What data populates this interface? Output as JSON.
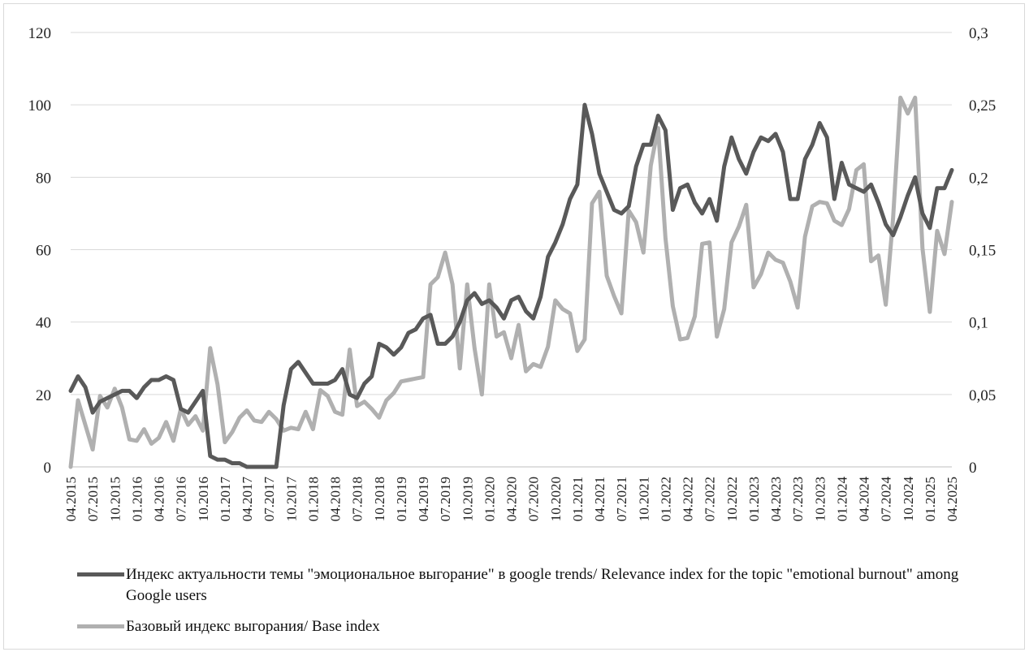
{
  "chart_data": {
    "type": "line",
    "title": "",
    "xlabel": "",
    "ylabel_left": "",
    "ylabel_right": "",
    "y_left": {
      "min": 0,
      "max": 120,
      "ticks": [
        "0",
        "20",
        "40",
        "60",
        "80",
        "100",
        "120"
      ]
    },
    "y_right": {
      "min": 0,
      "max": 0.3,
      "ticks": [
        "0",
        "0,05",
        "0,1",
        "0,15",
        "0,2",
        "0,25",
        "0,3"
      ]
    },
    "x_labels": [
      "04.2015",
      "07.2015",
      "10.2015",
      "01.2016",
      "04.2016",
      "07.2016",
      "10.2016",
      "01.2017",
      "04.2017",
      "07.2017",
      "10.2017",
      "01.2018",
      "04.2018",
      "07.2018",
      "10.2018",
      "01.2019",
      "04.2019",
      "07.2019",
      "10.2019",
      "01.2020",
      "04.2020",
      "07.2020",
      "10.2020",
      "01.2021",
      "04.2021",
      "07.2021",
      "10.2021",
      "01.2022",
      "04.2022",
      "07.2022",
      "10.2022",
      "01.2023",
      "04.2023",
      "07.2023",
      "10.2023",
      "01.2024",
      "04.2024",
      "07.2024",
      "10.2024",
      "01.2025",
      "04.2025"
    ],
    "grid": true,
    "legend_position": "bottom",
    "series": [
      {
        "name": "Индекс актуальности темы \"эмоциональное выгорание\" в google trends/ Relevance index for the topic \"emotional burnout\" among Google users",
        "axis": "left",
        "color": "#595959",
        "values": [
          21,
          25,
          22,
          15,
          18,
          19,
          20,
          21,
          21,
          19,
          22,
          24,
          24,
          25,
          24,
          16,
          15,
          18,
          21,
          3,
          2,
          2,
          1,
          1,
          0,
          0,
          0,
          0,
          0,
          17,
          27,
          29,
          26,
          23,
          23,
          23,
          24,
          27,
          20,
          19,
          23,
          25,
          34,
          33,
          31,
          33,
          37,
          38,
          41,
          42,
          34,
          34,
          36,
          40,
          46,
          48,
          45,
          46,
          44,
          41,
          46,
          47,
          43,
          41,
          47,
          58,
          62,
          67,
          74,
          78,
          100,
          92,
          81,
          76,
          71,
          70,
          72,
          83,
          89,
          89,
          97,
          93,
          71,
          77,
          78,
          73,
          70,
          74,
          68,
          83,
          91,
          85,
          81,
          87,
          91,
          90,
          92,
          87,
          74,
          74,
          85,
          89,
          95,
          91,
          74,
          84,
          78,
          77,
          76,
          78,
          73,
          67,
          64,
          69,
          75,
          80,
          70,
          66,
          77,
          77,
          82
        ]
      },
      {
        "name": "Базовый индекс выгорания/ Base index",
        "axis": "right",
        "color": "#b0b0b0",
        "values": [
          0.0,
          0.046,
          0.029,
          0.012,
          0.049,
          0.041,
          0.054,
          0.041,
          0.019,
          0.018,
          0.026,
          0.016,
          0.02,
          0.031,
          0.018,
          0.04,
          0.029,
          0.035,
          0.025,
          0.082,
          0.057,
          0.017,
          0.024,
          0.034,
          0.039,
          0.032,
          0.031,
          0.038,
          0.033,
          0.025,
          0.027,
          0.026,
          0.038,
          0.026,
          0.053,
          0.049,
          0.038,
          0.036,
          0.081,
          0.042,
          0.045,
          0.04,
          0.034,
          0.046,
          0.051,
          0.059,
          0.06,
          0.061,
          0.062,
          0.126,
          0.131,
          0.148,
          0.126,
          0.068,
          0.126,
          0.082,
          0.05,
          0.126,
          0.09,
          0.093,
          0.075,
          0.098,
          0.066,
          0.071,
          0.069,
          0.083,
          0.115,
          0.109,
          0.106,
          0.08,
          0.088,
          0.182,
          0.19,
          0.132,
          0.118,
          0.106,
          0.177,
          0.169,
          0.148,
          0.208,
          0.234,
          0.158,
          0.111,
          0.088,
          0.089,
          0.104,
          0.154,
          0.155,
          0.09,
          0.109,
          0.155,
          0.166,
          0.181,
          0.124,
          0.133,
          0.148,
          0.143,
          0.141,
          0.128,
          0.11,
          0.159,
          0.18,
          0.183,
          0.182,
          0.17,
          0.167,
          0.178,
          0.205,
          0.209,
          0.142,
          0.146,
          0.112,
          0.172,
          0.255,
          0.244,
          0.255,
          0.151,
          0.107,
          0.163,
          0.147,
          0.183
        ]
      }
    ]
  },
  "legend": {
    "items": [
      {
        "label": "Индекс актуальности темы \"эмоциональное выгорание\" в google trends/ Relevance index for the topic \"emotional burnout\" among Google users",
        "color": "#595959"
      },
      {
        "label": "Базовый индекс выгорания/ Base index",
        "color": "#b0b0b0"
      }
    ]
  }
}
